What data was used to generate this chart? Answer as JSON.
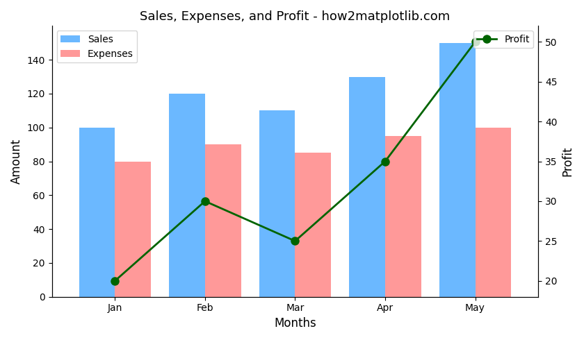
{
  "months": [
    "Jan",
    "Feb",
    "Mar",
    "Apr",
    "May"
  ],
  "sales": [
    100,
    120,
    110,
    130,
    150
  ],
  "expenses": [
    80,
    90,
    85,
    95,
    100
  ],
  "profit": [
    20,
    30,
    25,
    35,
    50
  ],
  "sales_color": "#6BB8FF",
  "expenses_color": "#FF9999",
  "profit_color": "darkgreen",
  "title": "Sales, Expenses, and Profit - how2matplotlib.com",
  "xlabel": "Months",
  "ylabel_left": "Amount",
  "ylabel_right": "Profit",
  "legend_sales": "Sales",
  "legend_expenses": "Expenses",
  "legend_profit": "Profit",
  "ylim_left": [
    0,
    160
  ],
  "ylim_right": [
    18,
    52
  ],
  "bar_width": 0.4
}
